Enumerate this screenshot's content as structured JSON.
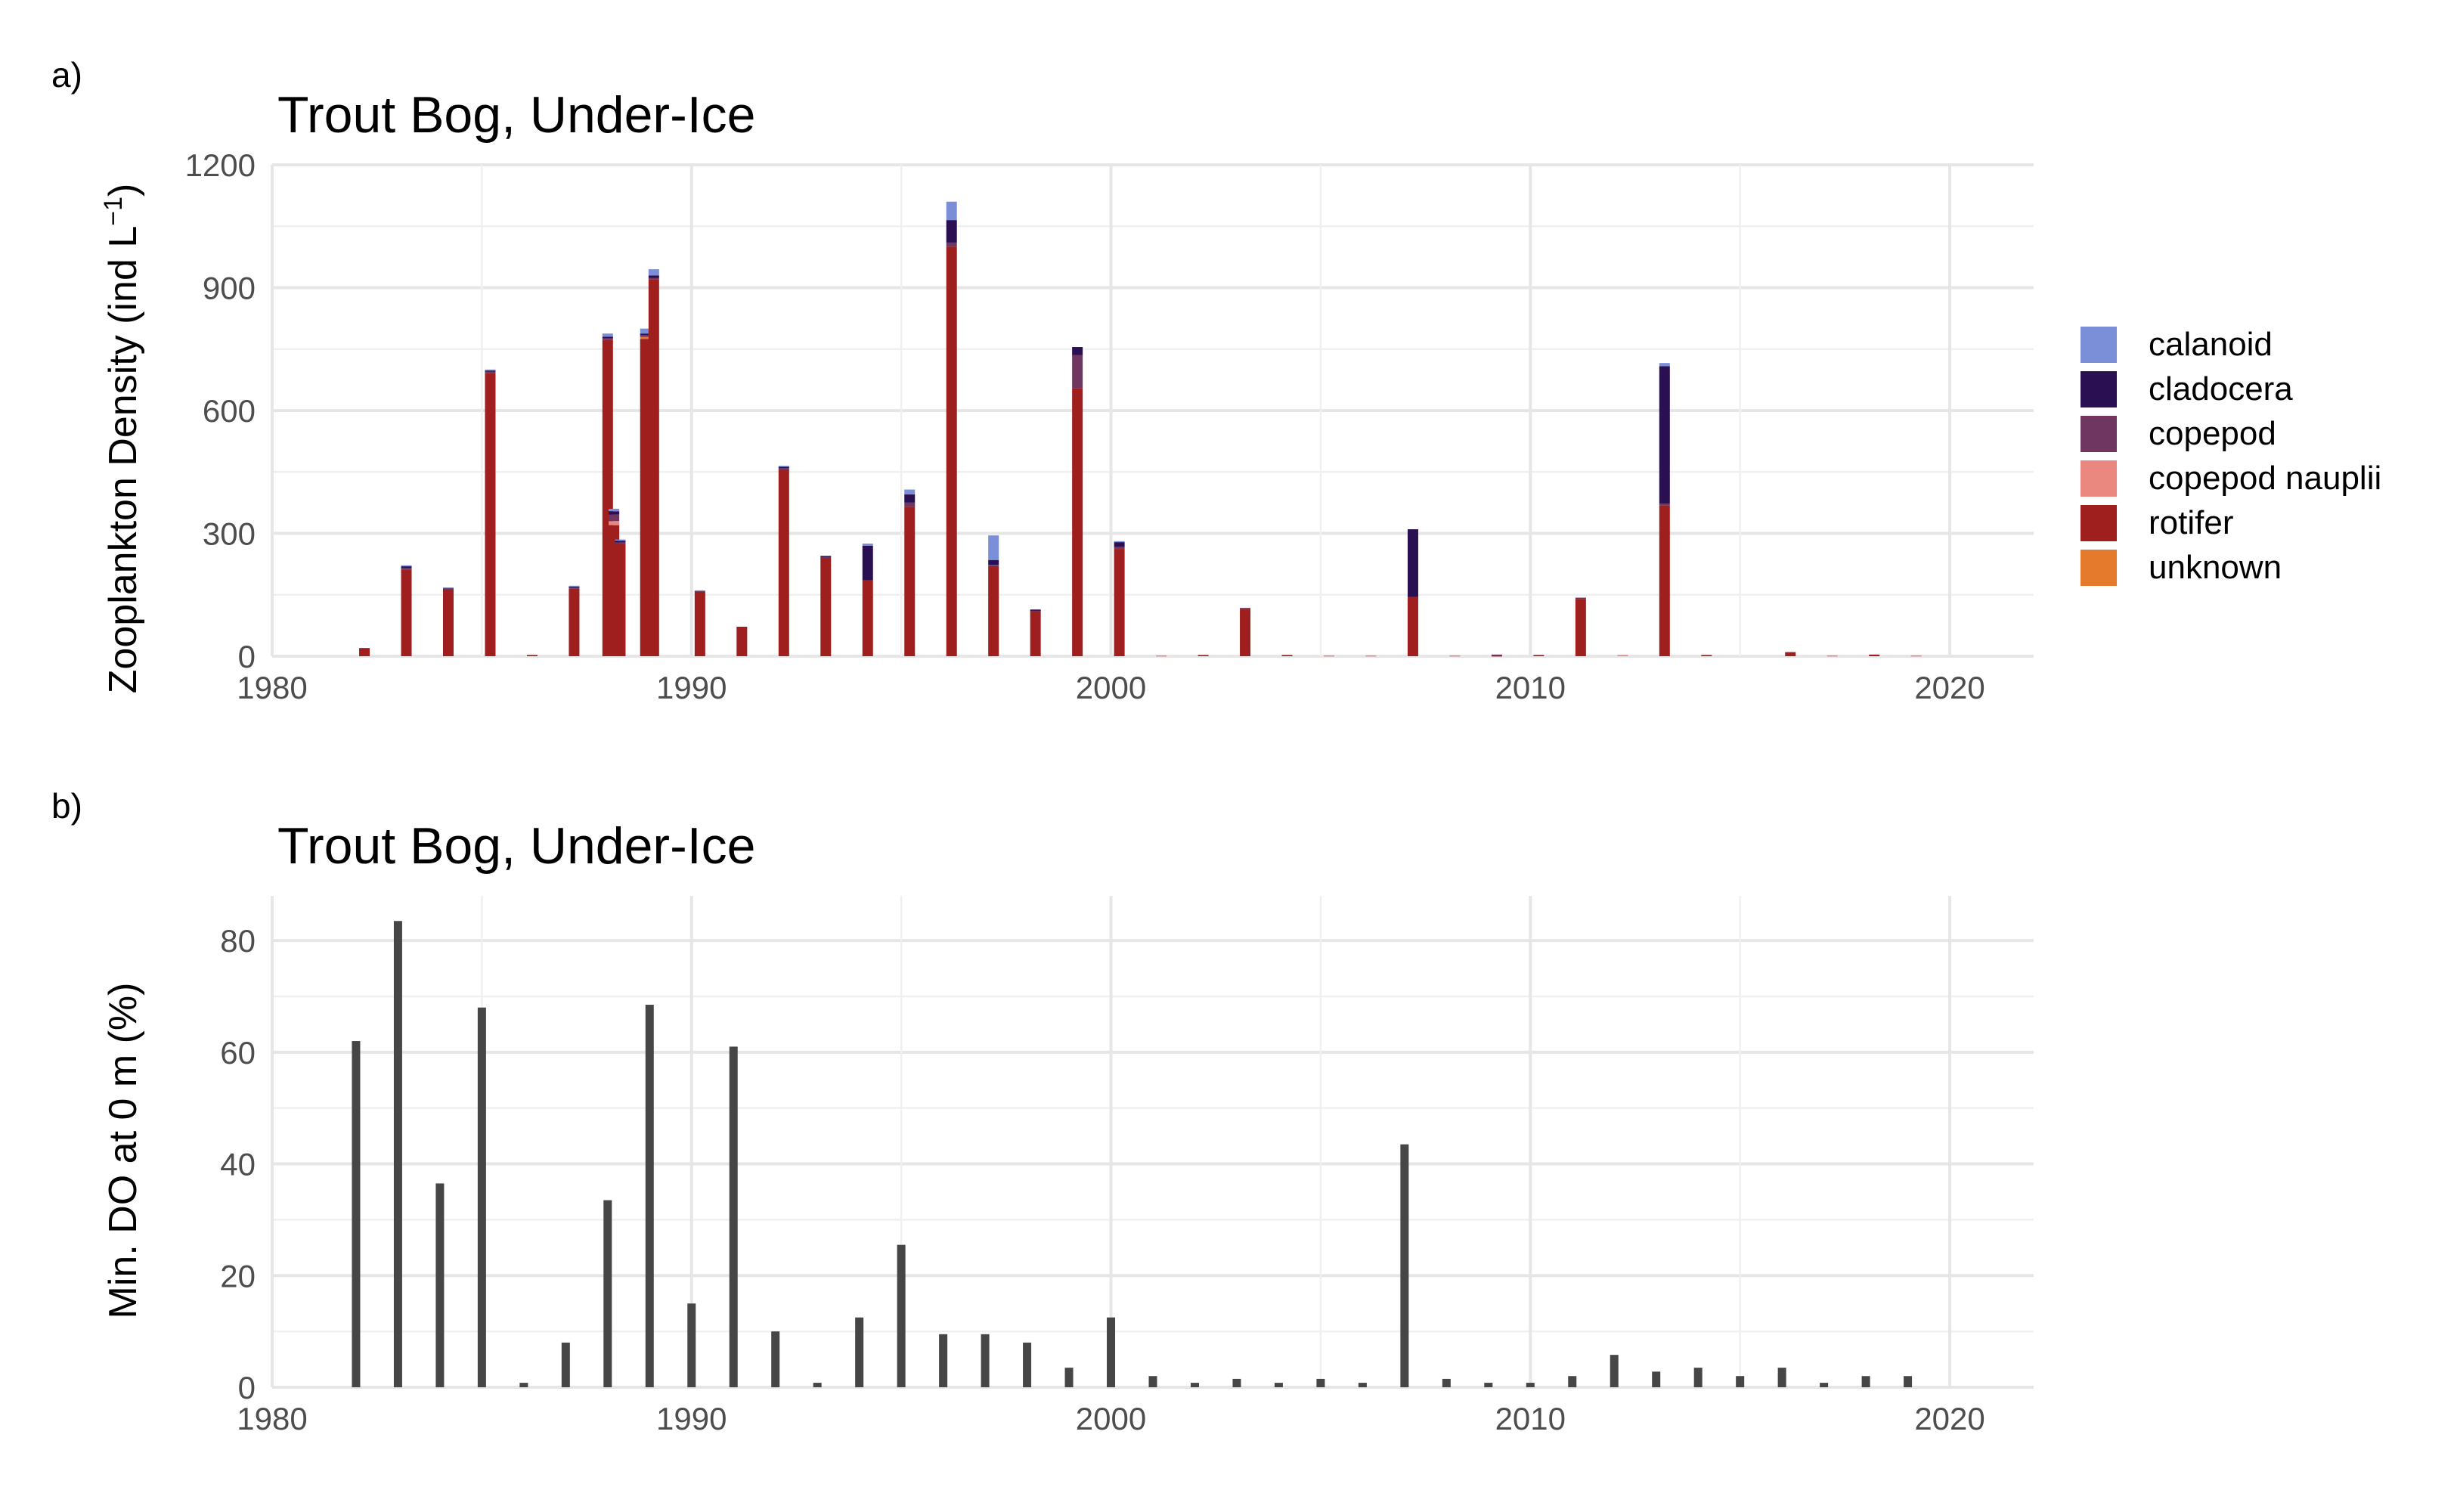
{
  "chart_data": [
    {
      "type": "bar",
      "stacked": true,
      "panel_tag": "a)",
      "title": "Trout Bog, Under-Ice",
      "ylabel_main": "Zooplankton Density (ind L",
      "ylabel_sup": "−1",
      "ylabel_close": ")",
      "xlim": [
        1980,
        2022
      ],
      "ylim": [
        0,
        1200
      ],
      "x_ticks": [
        "1980",
        "1990",
        "2000",
        "2010",
        "2020"
      ],
      "y_ticks": [
        "0",
        "300",
        "600",
        "900",
        "1200"
      ],
      "grid": true,
      "legend_position": "right",
      "series": [
        {
          "name": "calanoid",
          "color": "#7b8fd8"
        },
        {
          "name": "cladocera",
          "color": "#2a0f52"
        },
        {
          "name": "copepod",
          "color": "#6e3660"
        },
        {
          "name": "copepod nauplii",
          "color": "#ea8880"
        },
        {
          "name": "rotifer",
          "color": "#9e1f1e"
        },
        {
          "name": "unknown",
          "color": "#e57a2c"
        }
      ],
      "bars": [
        {
          "x": 1982.2,
          "values": [
            0,
            0,
            0,
            0,
            20,
            0
          ]
        },
        {
          "x": 1983.2,
          "values": [
            2,
            4,
            4,
            0,
            212,
            0
          ]
        },
        {
          "x": 1984.2,
          "values": [
            1,
            2,
            2,
            0,
            163,
            0
          ]
        },
        {
          "x": 1985.2,
          "values": [
            2,
            3,
            3,
            0,
            692,
            0
          ]
        },
        {
          "x": 1986.2,
          "values": [
            0,
            0,
            0,
            0,
            3,
            0
          ]
        },
        {
          "x": 1987.2,
          "values": [
            2,
            2,
            3,
            0,
            165,
            0
          ]
        },
        {
          "x": 1988.0,
          "values": [
            8,
            4,
            4,
            0,
            772,
            0
          ]
        },
        {
          "x": 1988.15,
          "values": [
            6,
            8,
            16,
            10,
            320,
            0
          ]
        },
        {
          "x": 1988.3,
          "values": [
            3,
            4,
            3,
            0,
            275,
            0
          ]
        },
        {
          "x": 1988.9,
          "values": [
            12,
            4,
            4,
            0,
            775,
            5
          ]
        },
        {
          "x": 1989.1,
          "values": [
            15,
            6,
            4,
            0,
            920,
            0
          ]
        },
        {
          "x": 1990.2,
          "values": [
            0,
            0,
            3,
            0,
            157,
            0
          ]
        },
        {
          "x": 1991.2,
          "values": [
            0,
            0,
            0,
            0,
            72,
            0
          ]
        },
        {
          "x": 1992.2,
          "values": [
            2,
            4,
            4,
            0,
            455,
            0
          ]
        },
        {
          "x": 1993.2,
          "values": [
            0,
            3,
            2,
            0,
            240,
            0
          ]
        },
        {
          "x": 1994.2,
          "values": [
            5,
            85,
            0,
            0,
            185,
            0
          ]
        },
        {
          "x": 1995.2,
          "values": [
            12,
            20,
            10,
            0,
            365,
            0
          ]
        },
        {
          "x": 1996.2,
          "values": [
            45,
            55,
            10,
            0,
            1000,
            0
          ]
        },
        {
          "x": 1997.2,
          "values": [
            60,
            12,
            3,
            0,
            220,
            0
          ]
        },
        {
          "x": 1998.2,
          "values": [
            0,
            2,
            2,
            0,
            110,
            0
          ]
        },
        {
          "x": 1999.2,
          "values": [
            0,
            20,
            80,
            0,
            655,
            0
          ]
        },
        {
          "x": 2000.2,
          "values": [
            2,
            12,
            5,
            0,
            262,
            0
          ]
        },
        {
          "x": 2001.2,
          "values": [
            0,
            0,
            0,
            2,
            0,
            0
          ]
        },
        {
          "x": 2002.2,
          "values": [
            0,
            0,
            0,
            0,
            3,
            0
          ]
        },
        {
          "x": 2003.2,
          "values": [
            0,
            0,
            3,
            0,
            115,
            0
          ]
        },
        {
          "x": 2004.2,
          "values": [
            0,
            0,
            0,
            0,
            3,
            0
          ]
        },
        {
          "x": 2005.2,
          "values": [
            0,
            0,
            0,
            2,
            0,
            0
          ]
        },
        {
          "x": 2006.2,
          "values": [
            0,
            0,
            0,
            2,
            0,
            0
          ]
        },
        {
          "x": 2007.2,
          "values": [
            0,
            165,
            0,
            0,
            145,
            0
          ]
        },
        {
          "x": 2008.2,
          "values": [
            0,
            0,
            0,
            2,
            0,
            0
          ]
        },
        {
          "x": 2009.2,
          "values": [
            0,
            0,
            2,
            0,
            2,
            0
          ]
        },
        {
          "x": 2010.2,
          "values": [
            0,
            0,
            0,
            0,
            3,
            0
          ]
        },
        {
          "x": 2011.2,
          "values": [
            0,
            0,
            3,
            0,
            140,
            0
          ]
        },
        {
          "x": 2012.2,
          "values": [
            0,
            0,
            0,
            3,
            0,
            0
          ]
        },
        {
          "x": 2013.2,
          "values": [
            8,
            335,
            5,
            0,
            368,
            0
          ]
        },
        {
          "x": 2014.2,
          "values": [
            0,
            0,
            0,
            0,
            3,
            0
          ]
        },
        {
          "x": 2016.2,
          "values": [
            0,
            0,
            0,
            0,
            10,
            0
          ]
        },
        {
          "x": 2017.2,
          "values": [
            0,
            0,
            0,
            2,
            0,
            0
          ]
        },
        {
          "x": 2018.2,
          "values": [
            0,
            0,
            0,
            0,
            4,
            0
          ]
        },
        {
          "x": 2019.2,
          "values": [
            0,
            0,
            0,
            2,
            0,
            0
          ]
        }
      ]
    },
    {
      "type": "bar",
      "panel_tag": "b)",
      "title": "Trout Bog, Under-Ice",
      "ylabel": "Min. DO at 0 m (%)",
      "xlim": [
        1980,
        2022
      ],
      "ylim": [
        0,
        88
      ],
      "x_ticks": [
        "1980",
        "1990",
        "2000",
        "2010",
        "2020"
      ],
      "y_ticks": [
        "0",
        "20",
        "40",
        "60",
        "80"
      ],
      "grid": true,
      "bar_color": "#464646",
      "x": [
        1982,
        1983,
        1984,
        1985,
        1986,
        1987,
        1988,
        1989,
        1990,
        1991,
        1992,
        1993,
        1994,
        1995,
        1996,
        1997,
        1998,
        1999,
        2000,
        2001,
        2002,
        2003,
        2004,
        2005,
        2006,
        2007,
        2008,
        2009,
        2010,
        2011,
        2012,
        2013,
        2014,
        2015,
        2016,
        2017,
        2018,
        2019
      ],
      "values": [
        62,
        83.5,
        36.5,
        68,
        0.8,
        8,
        33.5,
        68.5,
        15,
        61,
        10,
        0.8,
        12.5,
        25.5,
        9.5,
        9.5,
        8,
        3.5,
        12.5,
        2,
        0.8,
        1.5,
        0.8,
        1.5,
        0.8,
        43.5,
        1.5,
        0.8,
        0.8,
        2,
        5.8,
        2.8,
        3.5,
        2,
        3.5,
        0.8,
        2,
        2
      ]
    }
  ]
}
